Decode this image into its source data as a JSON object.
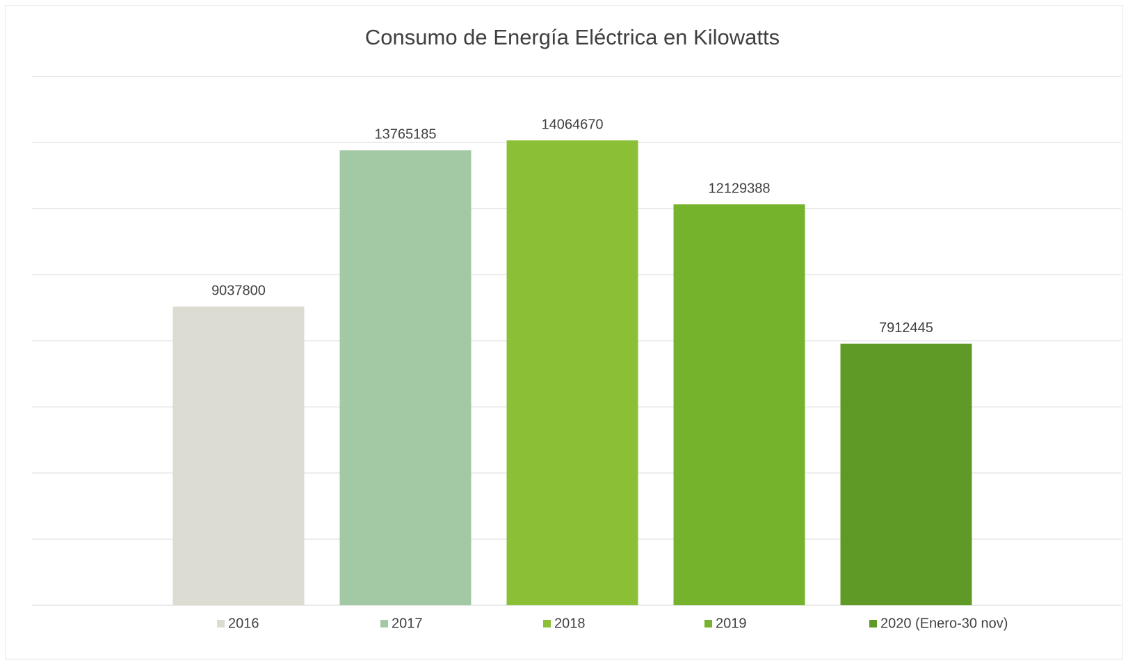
{
  "chart_data": {
    "type": "bar",
    "title": "Consumo de Energía Eléctrica en Kilowatts",
    "categories": [
      "2016",
      "2017",
      "2018",
      "2019",
      "2020 (Enero-30 nov)"
    ],
    "values": [
      9037800,
      13765185,
      14064670,
      12129388,
      7912445
    ],
    "colors": [
      "#dcdcd3",
      "#a2c9a3",
      "#8bc036",
      "#75b32c",
      "#5f9a27"
    ],
    "ylim": [
      0,
      16000000
    ],
    "yticks": [
      0,
      2000000,
      4000000,
      6000000,
      8000000,
      10000000,
      12000000,
      14000000,
      16000000
    ],
    "grid": true,
    "legend": "bottom"
  }
}
